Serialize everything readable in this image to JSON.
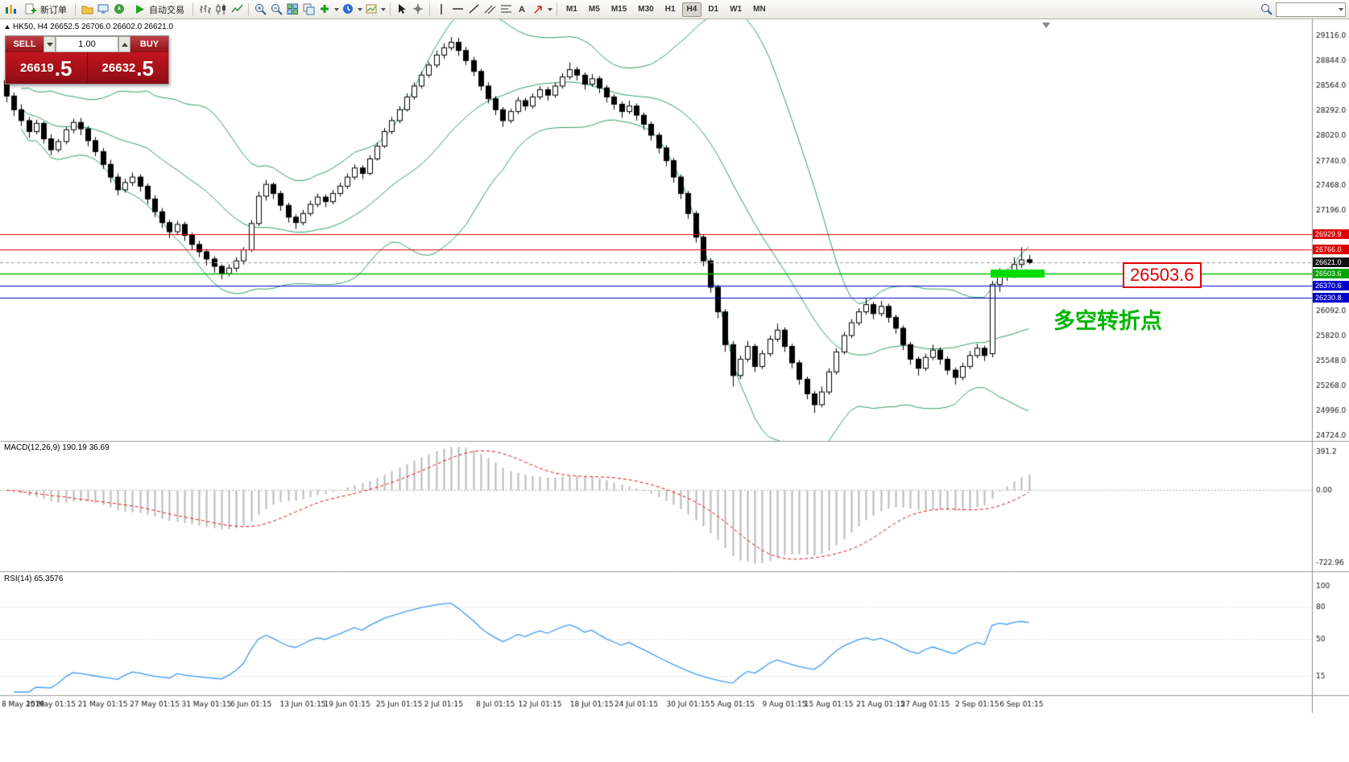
{
  "toolbar": {
    "new_order_label": "新订单",
    "autotrade_label": "自动交易",
    "timeframes": [
      "M1",
      "M5",
      "M15",
      "M30",
      "H1",
      "H4",
      "D1",
      "W1",
      "MN"
    ],
    "active_timeframe": "H4",
    "search_value": "",
    "icons": [
      "app-icon",
      "new-order-icon",
      "profiles-icon",
      "market-watch-icon",
      "navigator-icon",
      "autotrade-play-icon",
      "bars-chart-icon",
      "candlestick-chart-icon",
      "line-chart-icon",
      "zoom-in-icon",
      "zoom-out-icon",
      "tile-windows-icon",
      "arrange-windows-icon",
      "indicators-icon",
      "periods-icon",
      "templates-icon",
      "cursor-icon",
      "crosshair-icon",
      "vertical-line-icon",
      "horizontal-line-icon",
      "trendline-icon",
      "equidistant-channel-icon",
      "fibonacci-icon",
      "text-icon",
      "arrows-icon",
      "search-icon",
      "chevron-down-icon"
    ]
  },
  "symbol_bar": {
    "text": "HK50, H4  26652.5 26706.0 26602.0 26621.0"
  },
  "trade_panel": {
    "sell_label": "SELL",
    "buy_label": "BUY",
    "volume": "1.00",
    "sell_price_main": "26619",
    "sell_price_frac": ".5",
    "buy_price_main": "26632",
    "buy_price_frac": ".5"
  },
  "levels": [
    {
      "name": "resistance-upper",
      "price": 26929.9,
      "label": "26929.9",
      "line": "#dd0000",
      "tag": "#dd0000",
      "style": "solid"
    },
    {
      "name": "resistance-lower",
      "price": 26766.0,
      "label": "26766.0",
      "line": "#dd0000",
      "tag": "#dd0000",
      "style": "solid"
    },
    {
      "name": "bid-line",
      "price": 26621.0,
      "label": "26621.0",
      "line": "#9a9a9a",
      "tag": "#111111",
      "style": "dash"
    },
    {
      "name": "pivot",
      "price": 26503.6,
      "label": "26503.6",
      "line": "#00bb00",
      "tag": "#00a400",
      "style": "solid"
    },
    {
      "name": "support-upper",
      "price": 26370.6,
      "label": "26370.6",
      "line": "#0000cc",
      "tag": "#0000cc",
      "style": "solid"
    },
    {
      "name": "support-lower",
      "price": 26230.8,
      "label": "26230.8",
      "line": "#0000cc",
      "tag": "#0000cc",
      "style": "solid"
    }
  ],
  "annotations": {
    "price_callout": "26503.6",
    "turning_point_label": "多空转折点"
  },
  "indicators": {
    "macd_label": "MACD(12,26,9) 190.19 36.69",
    "rsi_label": "RSI(14) 65.3576"
  },
  "chart_data": {
    "type": "candlestick",
    "symbol": "HK50",
    "timeframe": "H4",
    "last": {
      "open": 26652.5,
      "high": 26706.0,
      "low": 26602.0,
      "close": 26621.0
    },
    "price_axis_ticks": [
      29116.0,
      28844.0,
      28564.0,
      28292.0,
      28020.0,
      27740.0,
      27468.0,
      27196.0,
      26924.0,
      26652.0,
      26380.0,
      26092.0,
      25820.0,
      25548.0,
      25268.0,
      24996.0,
      24724.0
    ],
    "bollinger": {
      "period": 20,
      "deviation": 2,
      "color": "#2f9e64"
    },
    "macd": {
      "fast": 12,
      "slow": 26,
      "signal": 9,
      "value": 190.19,
      "signal_value": 36.69,
      "axis_max": 391.2,
      "axis_min": -722.96
    },
    "rsi": {
      "period": 14,
      "value": 65.3576,
      "levels": [
        80,
        50,
        15
      ],
      "axis_ticks": [
        100,
        80,
        50,
        15
      ]
    },
    "candles": [
      [
        28620,
        28650,
        28380,
        28450
      ],
      [
        28450,
        28490,
        28230,
        28300
      ],
      [
        28300,
        28360,
        28120,
        28180
      ],
      [
        28180,
        28220,
        27990,
        28060
      ],
      [
        28060,
        28190,
        28030,
        28150
      ],
      [
        28150,
        28170,
        27930,
        27980
      ],
      [
        27980,
        28030,
        27800,
        27860
      ],
      [
        27860,
        27980,
        27830,
        27950
      ],
      [
        27950,
        28110,
        27920,
        28080
      ],
      [
        28080,
        28200,
        28040,
        28160
      ],
      [
        28160,
        28210,
        28020,
        28090
      ],
      [
        28090,
        28120,
        27900,
        27960
      ],
      [
        27960,
        28000,
        27790,
        27840
      ],
      [
        27840,
        27880,
        27650,
        27700
      ],
      [
        27700,
        27750,
        27500,
        27560
      ],
      [
        27560,
        27600,
        27360,
        27420
      ],
      [
        27420,
        27540,
        27390,
        27500
      ],
      [
        27500,
        27610,
        27460,
        27560
      ],
      [
        27560,
        27590,
        27400,
        27460
      ],
      [
        27460,
        27490,
        27260,
        27320
      ],
      [
        27320,
        27360,
        27120,
        27180
      ],
      [
        27180,
        27220,
        27000,
        27060
      ],
      [
        27060,
        27090,
        26890,
        26960
      ],
      [
        26960,
        27080,
        26920,
        27040
      ],
      [
        27040,
        27070,
        26860,
        26920
      ],
      [
        26920,
        26950,
        26760,
        26820
      ],
      [
        26820,
        26860,
        26680,
        26740
      ],
      [
        26740,
        26770,
        26590,
        26660
      ],
      [
        26660,
        26690,
        26510,
        26580
      ],
      [
        26580,
        26600,
        26440,
        26500
      ],
      [
        26500,
        26600,
        26470,
        26560
      ],
      [
        26560,
        26680,
        26520,
        26640
      ],
      [
        26640,
        26790,
        26600,
        26760
      ],
      [
        26760,
        27090,
        26740,
        27050
      ],
      [
        27050,
        27400,
        27020,
        27350
      ],
      [
        27350,
        27530,
        27300,
        27480
      ],
      [
        27480,
        27500,
        27320,
        27380
      ],
      [
        27380,
        27410,
        27190,
        27250
      ],
      [
        27250,
        27280,
        27060,
        27120
      ],
      [
        27120,
        27150,
        26990,
        27060
      ],
      [
        27060,
        27200,
        27030,
        27160
      ],
      [
        27160,
        27300,
        27130,
        27260
      ],
      [
        27260,
        27380,
        27230,
        27340
      ],
      [
        27340,
        27370,
        27230,
        27290
      ],
      [
        27290,
        27420,
        27260,
        27380
      ],
      [
        27380,
        27500,
        27350,
        27460
      ],
      [
        27460,
        27600,
        27430,
        27560
      ],
      [
        27560,
        27700,
        27530,
        27660
      ],
      [
        27660,
        27690,
        27540,
        27600
      ],
      [
        27600,
        27800,
        27580,
        27760
      ],
      [
        27760,
        27940,
        27740,
        27900
      ],
      [
        27900,
        28100,
        27880,
        28060
      ],
      [
        28060,
        28220,
        28030,
        28180
      ],
      [
        28180,
        28340,
        28150,
        28300
      ],
      [
        28300,
        28480,
        28280,
        28440
      ],
      [
        28440,
        28600,
        28410,
        28560
      ],
      [
        28560,
        28720,
        28530,
        28680
      ],
      [
        28680,
        28830,
        28650,
        28790
      ],
      [
        28790,
        28950,
        28760,
        28900
      ],
      [
        28900,
        29030,
        28860,
        28980
      ],
      [
        28980,
        29100,
        28950,
        29040
      ],
      [
        29040,
        29090,
        28890,
        28950
      ],
      [
        28950,
        28990,
        28790,
        28840
      ],
      [
        28840,
        28880,
        28670,
        28720
      ],
      [
        28720,
        28750,
        28510,
        28560
      ],
      [
        28560,
        28600,
        28370,
        28420
      ],
      [
        28420,
        28450,
        28240,
        28300
      ],
      [
        28300,
        28330,
        28110,
        28180
      ],
      [
        28180,
        28310,
        28150,
        28280
      ],
      [
        28280,
        28440,
        28250,
        28400
      ],
      [
        28400,
        28430,
        28290,
        28340
      ],
      [
        28340,
        28480,
        28310,
        28440
      ],
      [
        28440,
        28560,
        28410,
        28520
      ],
      [
        28520,
        28550,
        28400,
        28460
      ],
      [
        28460,
        28600,
        28430,
        28560
      ],
      [
        28560,
        28700,
        28530,
        28660
      ],
      [
        28660,
        28820,
        28630,
        28740
      ],
      [
        28740,
        28770,
        28620,
        28680
      ],
      [
        28680,
        28710,
        28520,
        28580
      ],
      [
        28580,
        28690,
        28550,
        28640
      ],
      [
        28640,
        28670,
        28480,
        28540
      ],
      [
        28540,
        28570,
        28380,
        28440
      ],
      [
        28440,
        28470,
        28300,
        28360
      ],
      [
        28360,
        28390,
        28210,
        28280
      ],
      [
        28280,
        28400,
        28250,
        28340
      ],
      [
        28340,
        28370,
        28180,
        28240
      ],
      [
        28240,
        28270,
        28080,
        28140
      ],
      [
        28140,
        28170,
        27960,
        28020
      ],
      [
        28020,
        28050,
        27820,
        27880
      ],
      [
        27880,
        27910,
        27680,
        27740
      ],
      [
        27740,
        27770,
        27500,
        27560
      ],
      [
        27560,
        27590,
        27320,
        27380
      ],
      [
        27380,
        27410,
        27100,
        27160
      ],
      [
        27160,
        27190,
        26840,
        26900
      ],
      [
        26900,
        26930,
        26580,
        26640
      ],
      [
        26640,
        26670,
        26290,
        26350
      ],
      [
        26350,
        26380,
        26010,
        26080
      ],
      [
        26080,
        26110,
        25640,
        25720
      ],
      [
        25720,
        25760,
        25260,
        25380
      ],
      [
        25380,
        25600,
        25340,
        25560
      ],
      [
        25560,
        25760,
        25530,
        25700
      ],
      [
        25700,
        25730,
        25420,
        25480
      ],
      [
        25480,
        25660,
        25450,
        25620
      ],
      [
        25620,
        25820,
        25590,
        25780
      ],
      [
        25780,
        25950,
        25750,
        25880
      ],
      [
        25880,
        25910,
        25640,
        25700
      ],
      [
        25700,
        25730,
        25460,
        25520
      ],
      [
        25520,
        25550,
        25280,
        25340
      ],
      [
        25340,
        25370,
        25120,
        25180
      ],
      [
        25180,
        25210,
        24970,
        25060
      ],
      [
        25060,
        25260,
        25030,
        25200
      ],
      [
        25200,
        25460,
        25170,
        25420
      ],
      [
        25420,
        25680,
        25390,
        25640
      ],
      [
        25640,
        25860,
        25610,
        25820
      ],
      [
        25820,
        26000,
        25790,
        25960
      ],
      [
        25960,
        26120,
        25930,
        26080
      ],
      [
        26080,
        26230,
        26050,
        26160
      ],
      [
        26160,
        26190,
        26000,
        26060
      ],
      [
        26060,
        26200,
        26030,
        26140
      ],
      [
        26140,
        26170,
        25960,
        26020
      ],
      [
        26020,
        26050,
        25840,
        25900
      ],
      [
        25900,
        25930,
        25660,
        25720
      ],
      [
        25720,
        25750,
        25500,
        25560
      ],
      [
        25560,
        25590,
        25380,
        25460
      ],
      [
        25460,
        25620,
        25430,
        25580
      ],
      [
        25580,
        25720,
        25550,
        25660
      ],
      [
        25660,
        25690,
        25500,
        25560
      ],
      [
        25560,
        25590,
        25390,
        25440
      ],
      [
        25440,
        25470,
        25280,
        25360
      ],
      [
        25360,
        25520,
        25330,
        25480
      ],
      [
        25480,
        25650,
        25450,
        25600
      ],
      [
        25600,
        25730,
        25570,
        25680
      ],
      [
        25680,
        25710,
        25540,
        25600
      ],
      [
        25620,
        26420,
        25580,
        26380
      ],
      [
        26380,
        26560,
        26300,
        26520
      ],
      [
        26520,
        26550,
        26420,
        26480
      ],
      [
        26480,
        26680,
        26450,
        26600
      ],
      [
        26600,
        26790,
        26560,
        26650
      ],
      [
        26652.5,
        26706.0,
        26602.0,
        26621.0
      ]
    ],
    "time_axis": [
      {
        "label": "8 May 2019",
        "i": 0
      },
      {
        "label": "15 May 01:15",
        "i": 6
      },
      {
        "label": "21 May 01:15",
        "i": 13
      },
      {
        "label": "27 May 01:15",
        "i": 20
      },
      {
        "label": "31 May 01:15",
        "i": 27
      },
      {
        "label": "6 Jun 01:15",
        "i": 33
      },
      {
        "label": "13 Jun 01:15",
        "i": 40
      },
      {
        "label": "19 Jun 01:15",
        "i": 46
      },
      {
        "label": "25 Jun 01:15",
        "i": 53
      },
      {
        "label": "2 Jul 01:15",
        "i": 59
      },
      {
        "label": "8 Jul 01:15",
        "i": 66
      },
      {
        "label": "12 Jul 01:15",
        "i": 72
      },
      {
        "label": "18 Jul 01:15",
        "i": 79
      },
      {
        "label": "24 Jul 01:15",
        "i": 85
      },
      {
        "label": "30 Jul 01:15",
        "i": 92
      },
      {
        "label": "5 Aug 01:15",
        "i": 98
      },
      {
        "label": "9 Aug 01:15",
        "i": 105
      },
      {
        "label": "15 Aug 01:15",
        "i": 111
      },
      {
        "label": "21 Aug 01:15",
        "i": 118
      },
      {
        "label": "27 Aug 01:15",
        "i": 124
      },
      {
        "label": "2 Sep 01:15",
        "i": 131
      },
      {
        "label": "6 Sep 01:15",
        "i": 137
      }
    ]
  }
}
